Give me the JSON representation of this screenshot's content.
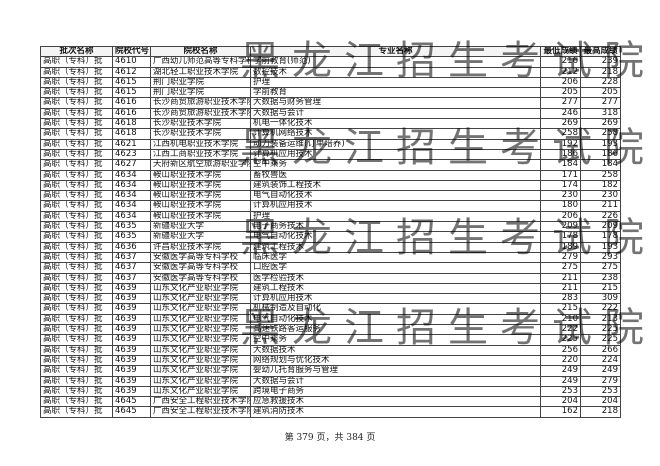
{
  "table": {
    "header": [
      "批次名称",
      "院校代号",
      "院校名称",
      "专业名称",
      "最低成绩",
      "最高成绩"
    ],
    "rows": [
      [
        "高职（专科）批",
        "4610",
        "广西幼儿师范高等专科学校",
        "学前教育(师范)",
        "216",
        "239"
      ],
      [
        "高职（专科）批",
        "4612",
        "湖北轻工职业技术学院",
        "数控技术",
        "212",
        "218"
      ],
      [
        "高职（专科）批",
        "4615",
        "荆门职业学院",
        "护理",
        "206",
        "228"
      ],
      [
        "高职（专科）批",
        "4615",
        "荆门职业学院",
        "学前教育",
        "205",
        "205"
      ],
      [
        "高职（专科）批",
        "4616",
        "长沙商贸旅游职业技术学院",
        "大数据与财务管理",
        "277",
        "277"
      ],
      [
        "高职（专科）批",
        "4616",
        "长沙商贸旅游职业技术学院",
        "大数据与会计",
        "246",
        "318"
      ],
      [
        "高职（专科）批",
        "4618",
        "长沙职业技术学院",
        "机电一体化技术",
        "269",
        "269"
      ],
      [
        "高职（专科）批",
        "4618",
        "长沙职业技术学院",
        "计算机网络技术",
        "258",
        "258"
      ],
      [
        "高职（专科）批",
        "4621",
        "江西机电职业技术学院",
        "动力装备运维(订单培养)",
        "192",
        "193"
      ],
      [
        "高职（专科）批",
        "4623",
        "江西工商职业技术学院",
        "计算机应用技术",
        "186",
        "186"
      ],
      [
        "高职（专科）批",
        "4627",
        "天府新区航空旅游职业学院",
        "空中乘务",
        "184",
        "184"
      ],
      [
        "高职（专科）批",
        "4634",
        "鞍山职业技术学院",
        "畜牧兽医",
        "171",
        "258"
      ],
      [
        "高职（专科）批",
        "4634",
        "鞍山职业技术学院",
        "建筑装饰工程技术",
        "174",
        "182"
      ],
      [
        "高职（专科）批",
        "4634",
        "鞍山职业技术学院",
        "电气自动化技术",
        "230",
        "230"
      ],
      [
        "高职（专科）批",
        "4634",
        "鞍山职业技术学院",
        "计算机应用技术",
        "180",
        "211"
      ],
      [
        "高职（专科）批",
        "4634",
        "鞍山职业技术学院",
        "护理",
        "206",
        "226"
      ],
      [
        "高职（专科）批",
        "4635",
        "新疆职业大学",
        "电子商务技术",
        "209",
        "209"
      ],
      [
        "高职（专科）批",
        "4635",
        "新疆职业大学",
        "电气自动化技术",
        "178",
        "178"
      ],
      [
        "高职（专科）批",
        "4636",
        "许昌职业技术学院",
        "建筑工程技术",
        "189",
        "193"
      ],
      [
        "高职（专科）批",
        "4637",
        "安徽医学高等专科学校",
        "临床医学",
        "279",
        "293"
      ],
      [
        "高职（专科）批",
        "4637",
        "安徽医学高等专科学校",
        "口腔医学",
        "275",
        "275"
      ],
      [
        "高职（专科）批",
        "4637",
        "安徽医学高等专科学校",
        "医学检验技术",
        "211",
        "238"
      ],
      [
        "高职（专科）批",
        "4639",
        "山东文化产业职业学院",
        "建筑工程技术",
        "211",
        "215"
      ],
      [
        "高职（专科）批",
        "4639",
        "山东文化产业职业学院",
        "计算机应用技术",
        "283",
        "309"
      ],
      [
        "高职（专科）批",
        "4639",
        "山东文化产业职业学院",
        "机械制造及自动化",
        "215",
        "222"
      ],
      [
        "高职（专科）批",
        "4639",
        "山东文化产业职业学院",
        "电气自动化技术",
        "210",
        "213"
      ],
      [
        "高职（专科）批",
        "4639",
        "山东文化产业职业学院",
        "高速铁路客运服务",
        "222",
        "225"
      ],
      [
        "高职（专科）批",
        "4639",
        "山东文化产业职业学院",
        "空中乘务",
        "225",
        "225"
      ],
      [
        "高职（专科）批",
        "4639",
        "山东文化产业职业学院",
        "大数据技术",
        "256",
        "266"
      ],
      [
        "高职（专科）批",
        "4639",
        "山东文化产业职业学院",
        "网络规划与优化技术",
        "220",
        "224"
      ],
      [
        "高职（专科）批",
        "4639",
        "山东文化产业职业学院",
        "婴幼儿托育服务与管理",
        "249",
        "249"
      ],
      [
        "高职（专科）批",
        "4639",
        "山东文化产业职业学院",
        "大数据与会计",
        "249",
        "279"
      ],
      [
        "高职（专科）批",
        "4639",
        "山东文化产业职业学院",
        "跨境电子商务",
        "253",
        "253"
      ],
      [
        "高职（专科）批",
        "4645",
        "广西安全工程职业技术学院",
        "应急救援技术",
        "204",
        "204"
      ],
      [
        "高职（专科）批",
        "4645",
        "广西安全工程职业技术学院",
        "建筑消防技术",
        "162",
        "218"
      ]
    ]
  },
  "footer": "第 379 页，共 384 页",
  "watermark": "黑龙江招生考试院"
}
